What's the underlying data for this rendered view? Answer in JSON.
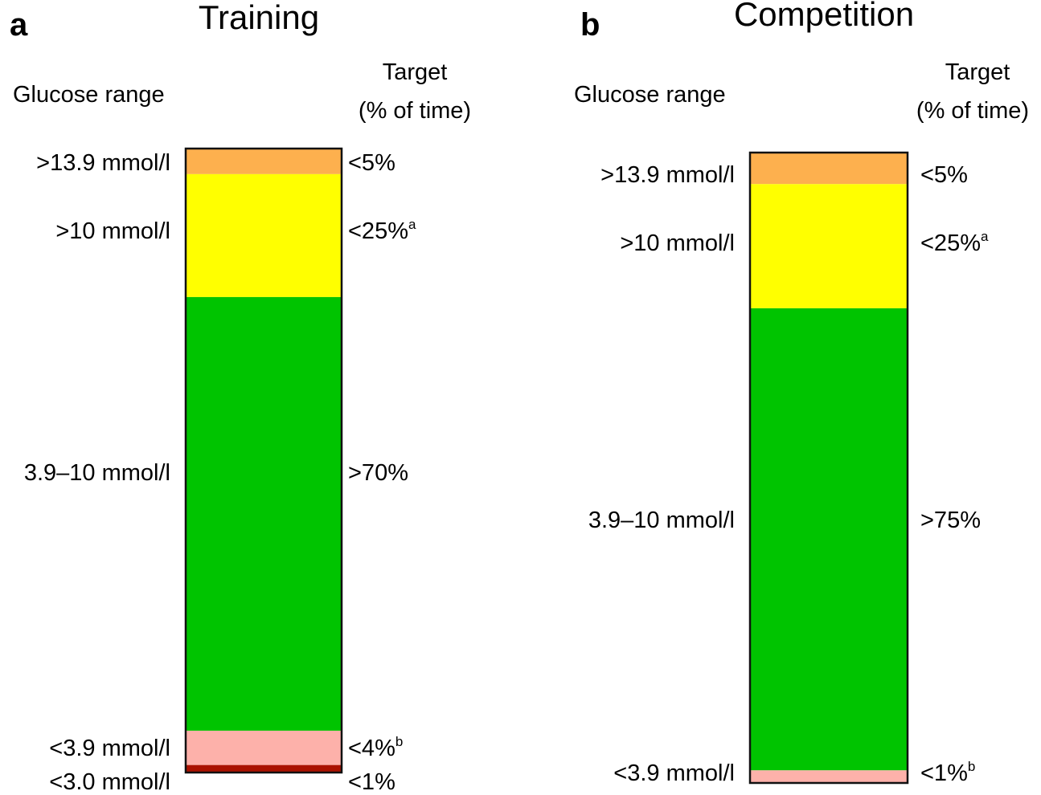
{
  "chart_data": [
    {
      "type": "bar",
      "panel": "a",
      "title": "Training",
      "left_header": "Glucose range",
      "right_header_line1": "Target",
      "right_header_line2": "(% of time)",
      "orientation": "stacked-vertical",
      "segments": [
        {
          "range": ">13.9 mmol/l",
          "target": "<5%",
          "sup": "",
          "color": "#FDB04E",
          "share": 4.1
        },
        {
          "range": ">10 mmol/l",
          "target": "<25%",
          "sup": "a",
          "color": "#FFFF00",
          "share": 19.7
        },
        {
          "range": "3.9–10 mmol/l",
          "target": ">70%",
          "sup": "",
          "color": "#00C400",
          "share": 69.5
        },
        {
          "range": "<3.9 mmol/l",
          "target": "<4%",
          "sup": "b",
          "color": "#FDB1AA",
          "share": 5.5
        },
        {
          "range": "<3.0 mmol/l",
          "target": "<1%",
          "sup": "",
          "color": "#AA1200",
          "share": 1.2
        }
      ]
    },
    {
      "type": "bar",
      "panel": "b",
      "title": "Competition",
      "left_header": "Glucose range",
      "right_header_line1": "Target",
      "right_header_line2": "(% of time)",
      "orientation": "stacked-vertical",
      "segments": [
        {
          "range": ">13.9 mmol/l",
          "target": "<5%",
          "sup": "",
          "color": "#FDB04E",
          "share": 5.0
        },
        {
          "range": ">10 mmol/l",
          "target": "<25%",
          "sup": "a",
          "color": "#FFFF00",
          "share": 19.7
        },
        {
          "range": "3.9–10 mmol/l",
          "target": ">75%",
          "sup": "",
          "color": "#00C400",
          "share": 73.3
        },
        {
          "range": "<3.9 mmol/l",
          "target": "<1%",
          "sup": "b",
          "color": "#FDB1AA",
          "share": 2.0
        }
      ]
    }
  ]
}
